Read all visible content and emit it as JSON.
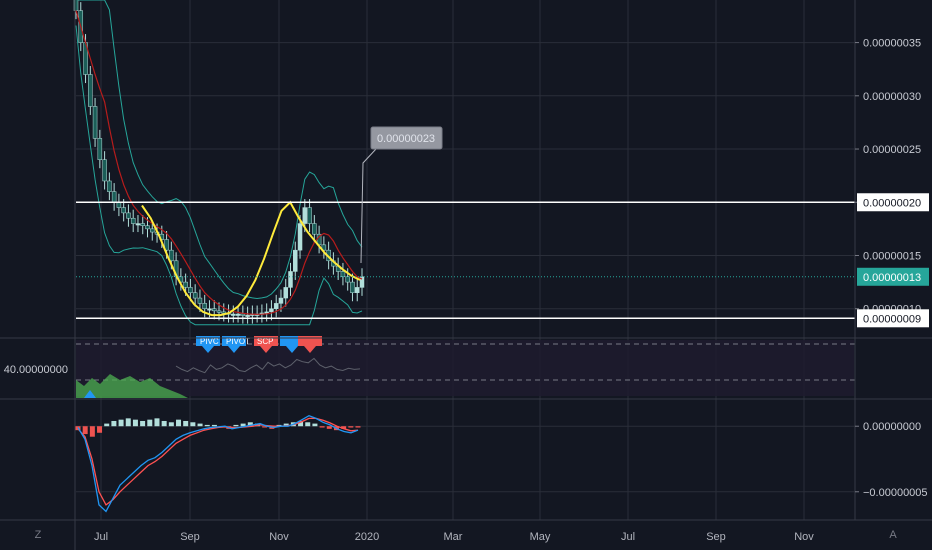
{
  "chart_data": {
    "type": "candlestick",
    "main": {
      "y_ticks": [
        "0.00000035",
        "0.00000030",
        "0.00000025",
        "0.00000020",
        "0.00000015",
        "0.00000010"
      ],
      "y_tick_values": [
        3.5e-07,
        3e-07,
        2.5e-07,
        2e-07,
        1.5e-07,
        1e-07
      ],
      "ylim": [
        8e-08,
        3.9e-07
      ],
      "current_price_label": "0.00000013",
      "current_price": 1.3e-07,
      "hline_upper_label": "0.00000020",
      "hline_upper": 2e-07,
      "hline_lower_label": "0.00000009",
      "hline_lower": 9.1e-08,
      "callout_label": "0.00000023",
      "callout_value": 2.3e-07,
      "close_series": [
        3.8e-07,
        3.5e-07,
        3.2e-07,
        2.9e-07,
        2.6e-07,
        2.4e-07,
        2.2e-07,
        2.1e-07,
        2e-07,
        1.95e-07,
        1.9e-07,
        1.85e-07,
        1.8e-07,
        1.8e-07,
        1.78e-07,
        1.75e-07,
        1.72e-07,
        1.7e-07,
        1.65e-07,
        1.55e-07,
        1.45e-07,
        1.3e-07,
        1.25e-07,
        1.2e-07,
        1.15e-07,
        1.1e-07,
        1.05e-07,
        1e-07,
        1e-07,
        9.8e-08,
        9.7e-08,
        9.6e-08,
        9.5e-08,
        9.5e-08,
        9.5e-08,
        9.4e-08,
        9.4e-08,
        9.5e-08,
        9.5e-08,
        9.6e-08,
        9.7e-08,
        1e-07,
        1.05e-07,
        1.1e-07,
        1.2e-07,
        1.35e-07,
        1.55e-07,
        1.8e-07,
        1.95e-07,
        1.8e-07,
        1.7e-07,
        1.6e-07,
        1.55e-07,
        1.45e-07,
        1.4e-07,
        1.35e-07,
        1.3e-07,
        1.25e-07,
        1.15e-07,
        1.2e-07,
        1.3e-07
      ],
      "cup_curve": [
        1.97e-07,
        1.85e-07,
        1.68e-07,
        1.48e-07,
        1.3e-07,
        1.15e-07,
        1.04e-07,
        9.7e-08,
        9.4e-08,
        9.4e-08,
        9.6e-08,
        1.02e-07,
        1.12e-07,
        1.27e-07,
        1.47e-07,
        1.7e-07,
        1.92e-07,
        2e-07,
        1.85e-07,
        1.72e-07,
        1.62e-07,
        1.52e-07,
        1.44e-07,
        1.37e-07,
        1.31e-07,
        1.27e-07
      ]
    },
    "oscillator": {
      "y_tick": "40.00000000",
      "labels": [
        "PIVC",
        "PIVOT",
        "SCP"
      ],
      "line": [
        58,
        52,
        48,
        55,
        50,
        46,
        60,
        52,
        55,
        62,
        58,
        50,
        48,
        55,
        60,
        52,
        65,
        58,
        62,
        55,
        60,
        70,
        66,
        64,
        72,
        60,
        55,
        58,
        52,
        50,
        54,
        52,
        53
      ]
    },
    "macd": {
      "y_ticks": [
        "0.00000000",
        "−0.00000005"
      ],
      "y_tick_values": [
        0,
        -5e-08
      ],
      "ylim": [
        -7e-08,
        2e-08
      ],
      "macd_line": [
        -1e-09,
        -1e-08,
        -3e-08,
        -6e-08,
        -6.5e-08,
        -5.5e-08,
        -4.5e-08,
        -4e-08,
        -3.5e-08,
        -3e-08,
        -2.6e-08,
        -2.4e-08,
        -2e-08,
        -1.5e-08,
        -1e-08,
        -7e-09,
        -5e-09,
        -3.5e-09,
        -2e-09,
        -1e-09,
        -5e-10,
        0.0,
        -2e-09,
        -1e-09,
        0.0,
        1e-09,
        2e-09,
        0.0,
        -1e-09,
        0.0,
        0.0,
        2e-09,
        5e-09,
        8e-09,
        6e-09,
        3e-09,
        1e-09,
        -2e-09,
        -4e-09,
        -5e-09,
        -3e-09
      ],
      "signal_line": [
        -2e-09,
        -8e-09,
        -2.5e-08,
        -5e-08,
        -6e-08,
        -5.6e-08,
        -5e-08,
        -4.5e-08,
        -4e-08,
        -3.5e-08,
        -3e-08,
        -2.7e-08,
        -2.3e-08,
        -1.8e-08,
        -1.3e-08,
        -1e-08,
        -7e-09,
        -5e-09,
        -3e-09,
        -2e-09,
        -1e-09,
        -5e-10,
        -1e-09,
        -1e-09,
        -5e-10,
        0.0,
        1e-09,
        5e-10,
        0.0,
        0.0,
        5e-10,
        1.5e-09,
        3.5e-09,
        6e-09,
        6e-09,
        4.5e-09,
        2.5e-09,
        0.0,
        -2e-09,
        -3.5e-09,
        -3e-09
      ],
      "histogram": [
        -3e-09,
        -6e-09,
        -8e-09,
        -5e-09,
        2e-09,
        4e-09,
        5e-09,
        6e-09,
        5e-09,
        4e-09,
        5e-09,
        6e-09,
        4e-09,
        3e-09,
        5e-09,
        4e-09,
        3e-09,
        2e-09,
        1e-09,
        1e-09,
        -1e-09,
        -2e-09,
        1e-09,
        2e-09,
        3e-09,
        2e-09,
        -1e-09,
        -2e-09,
        1e-09,
        2e-09,
        3e-09,
        4e-09,
        3e-09,
        2e-09,
        -1e-09,
        -2e-09,
        -3e-09,
        -2e-09,
        -1e-09,
        -1e-09
      ]
    },
    "x_ticks": [
      "Jul",
      "Sep",
      "Nov",
      "2020",
      "Mar",
      "May",
      "Jul",
      "Sep",
      "Nov"
    ],
    "corner_left": "Z",
    "corner_right": "A"
  },
  "colors": {
    "background": "#131722",
    "grid": "#2a2e39",
    "candle": "#b2dfdb",
    "candle_dark": "#1b5e58",
    "bollinger": "#26a69a",
    "ma": "#b71c1c",
    "cup": "#ffeb3b",
    "current_price": "#26a69a",
    "hline": "#ffffff",
    "macd": "#2196f3",
    "signal": "#ff5252",
    "hist_pos": "#b2dfdb",
    "hist_neg": "#ef5350",
    "osc_green": "#4caf50",
    "osc_blue": "#2196f3",
    "osc_red": "#ef5350"
  }
}
